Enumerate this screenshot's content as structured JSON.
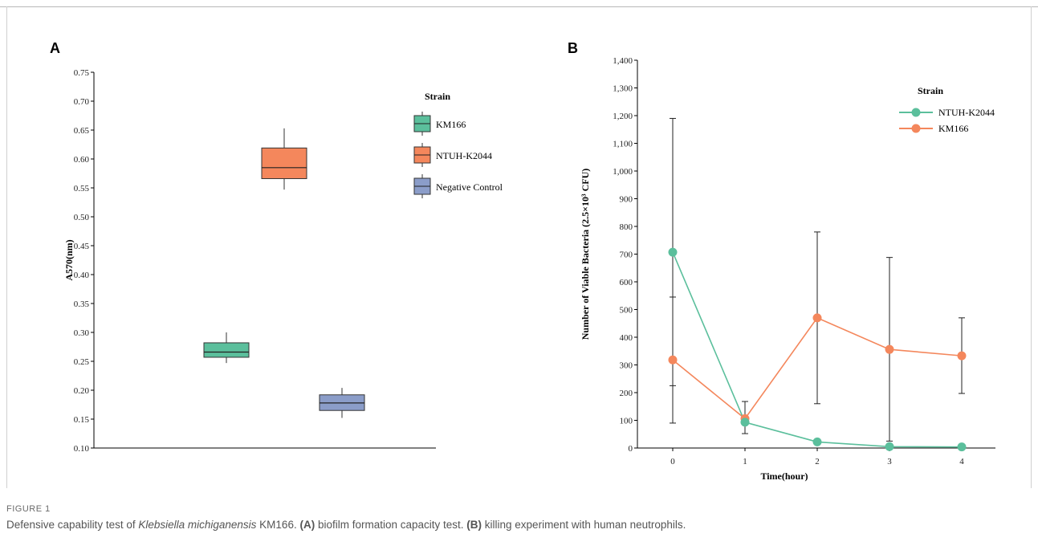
{
  "panels": {
    "a_letter": "A",
    "b_letter": "B"
  },
  "chart_data": [
    {
      "type": "box",
      "ylabel": "A570(nm)",
      "ylim": [
        0.1,
        0.75
      ],
      "yticks": [
        "0.10",
        "0.15",
        "0.20",
        "0.25",
        "0.30",
        "0.35",
        "0.40",
        "0.45",
        "0.50",
        "0.55",
        "0.60",
        "0.65",
        "0.70",
        "0.75"
      ],
      "legend_title": "Strain",
      "legend_placement": "top-right",
      "series": [
        {
          "name": "KM166",
          "color": "#5bbf9c",
          "min": 0.247,
          "q1": 0.257,
          "median": 0.266,
          "q3": 0.282,
          "max": 0.3
        },
        {
          "name": "NTUH-K2044",
          "color": "#f4875c",
          "min": 0.547,
          "q1": 0.566,
          "median": 0.585,
          "q3": 0.619,
          "max": 0.653
        },
        {
          "name": "Negative Control",
          "color": "#8b9dc9",
          "min": 0.152,
          "q1": 0.165,
          "median": 0.178,
          "q3": 0.192,
          "max": 0.204
        }
      ]
    },
    {
      "type": "line",
      "xlabel": "Time(hour)",
      "ylabel": "Number of Viable Bacteria (2.5×10³ CFU)",
      "x": [
        0,
        1,
        2,
        3,
        4
      ],
      "ylim": [
        0,
        1400
      ],
      "yticks": [
        "0",
        "100",
        "200",
        "300",
        "400",
        "500",
        "600",
        "700",
        "800",
        "900",
        "1,000",
        "1,100",
        "1,200",
        "1,300",
        "1,400"
      ],
      "legend_title": "Strain",
      "legend_placement": "top-right",
      "series": [
        {
          "name": "NTUH-K2044",
          "color": "#5bbf9c",
          "values": [
            707,
            93,
            22,
            5,
            4
          ],
          "err_low": [
            225,
            null,
            null,
            null,
            null
          ],
          "err_high": [
            1190,
            null,
            null,
            null,
            null
          ]
        },
        {
          "name": "KM166",
          "color": "#f4875c",
          "values": [
            318,
            106,
            470,
            356,
            333
          ],
          "err_low": [
            90,
            52,
            160,
            25,
            197
          ],
          "err_high": [
            545,
            168,
            780,
            688,
            470
          ]
        }
      ]
    }
  ],
  "caption": {
    "figure_label": "FIGURE 1",
    "t1": "Defensive capability test of ",
    "t2": "Klebsiella michiganensis",
    "t3": " KM166. ",
    "t4": "(A)",
    "t5": " biofilm formation capacity test. ",
    "t6": "(B)",
    "t7": " killing experiment with human neutrophils."
  }
}
